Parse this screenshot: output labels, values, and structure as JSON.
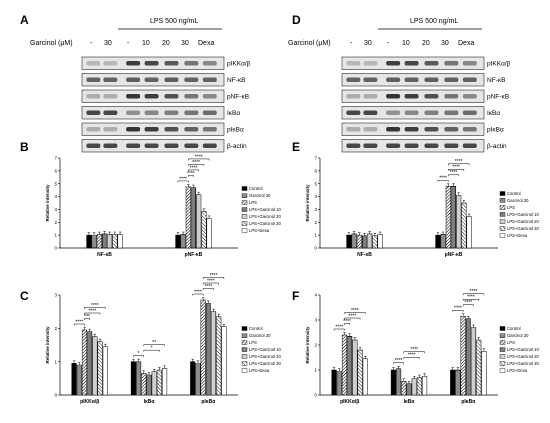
{
  "panels": {
    "A": "A",
    "B": "B",
    "C": "C",
    "D": "D",
    "E": "E",
    "F": "F"
  },
  "blot_header": {
    "lps": "LPS 500 ng/mL",
    "garcinol_label": "Garcinol (μM)",
    "lanes": [
      "-",
      "30",
      "-",
      "10",
      "20",
      "30",
      "Dexa"
    ]
  },
  "blot_left_rows": [
    "pIKKα/β",
    "NF-κB",
    "pNF-κB",
    "IκBα",
    "pIκBα",
    "β-actin"
  ],
  "blot_right_rows": [
    "pIKKα/β",
    "NF-κB",
    "pNF-κB",
    "IκBα",
    "pIκBα",
    "β-actin"
  ],
  "legend": [
    "Control",
    "Garcinol 30",
    "LPS",
    "LPS+Garcinol 10",
    "LPS+Garcinol 20",
    "LPS+Garcinol 30",
    "LPS+Dexa"
  ],
  "colors": {
    "ink": "#000000",
    "band": "#2a2a2a",
    "blot_bg": "#e6e6e6"
  },
  "chart_data": [
    {
      "panel": "B",
      "type": "bar",
      "ylabel": "Relative intensity",
      "ylim": [
        0,
        7
      ],
      "yticks": [
        "0",
        "1",
        "2",
        "3",
        "4",
        "5",
        "6",
        "7"
      ],
      "categories": [
        "NF-κB",
        "pNF-κB"
      ],
      "series": [
        {
          "name": "Control",
          "values": [
            1.0,
            1.0
          ]
        },
        {
          "name": "Garcinol 30",
          "values": [
            1.0,
            1.05
          ]
        },
        {
          "name": "LPS",
          "values": [
            1.05,
            4.75
          ]
        },
        {
          "name": "LPS+Garcinol 10",
          "values": [
            1.1,
            4.7
          ]
        },
        {
          "name": "LPS+Garcinol 20",
          "values": [
            1.05,
            4.15
          ]
        },
        {
          "name": "LPS+Garcinol 30",
          "values": [
            1.05,
            2.85
          ]
        },
        {
          "name": "LPS+Dexa",
          "values": [
            1.05,
            2.3
          ]
        }
      ],
      "brackets": [
        {
          "cat": 1,
          "a": 0,
          "b": 2,
          "level": 0,
          "label": "****"
        },
        {
          "cat": 1,
          "a": 2,
          "b": 3,
          "level": 1,
          "label": "****"
        },
        {
          "cat": 1,
          "a": 2,
          "b": 4,
          "level": 2,
          "label": "****"
        },
        {
          "cat": 1,
          "a": 2,
          "b": 5,
          "level": 3,
          "label": "****"
        },
        {
          "cat": 1,
          "a": 2,
          "b": 6,
          "level": 4,
          "label": "****"
        }
      ]
    },
    {
      "panel": "C",
      "type": "bar",
      "ylabel": "Relative intensity",
      "ylim": [
        0,
        3
      ],
      "yticks": [
        "0",
        "1",
        "2",
        "3"
      ],
      "categories": [
        "pIKKα/β",
        "IκBα",
        "pIκBα"
      ],
      "series": [
        {
          "name": "Control",
          "values": [
            0.95,
            1.0,
            1.0
          ]
        },
        {
          "name": "Garcinol 30",
          "values": [
            0.9,
            1.0,
            0.95
          ]
        },
        {
          "name": "LPS",
          "values": [
            1.95,
            0.65,
            2.85
          ]
        },
        {
          "name": "LPS+Garcinol 10",
          "values": [
            1.9,
            0.6,
            2.75
          ]
        },
        {
          "name": "LPS+Garcinol 20",
          "values": [
            1.75,
            0.7,
            2.5
          ]
        },
        {
          "name": "LPS+Garcinol 30",
          "values": [
            1.6,
            0.75,
            2.35
          ]
        },
        {
          "name": "LPS+Dexa",
          "values": [
            1.45,
            0.8,
            2.05
          ]
        }
      ],
      "brackets": [
        {
          "cat": 0,
          "a": 0,
          "b": 2,
          "level": 0,
          "label": "****"
        },
        {
          "cat": 0,
          "a": 2,
          "b": 3,
          "level": 1,
          "label": "***"
        },
        {
          "cat": 0,
          "a": 2,
          "b": 5,
          "level": 2,
          "label": "****"
        },
        {
          "cat": 0,
          "a": 2,
          "b": 6,
          "level": 3,
          "label": "****"
        },
        {
          "cat": 1,
          "a": 0,
          "b": 2,
          "level": 0,
          "label": "*"
        },
        {
          "cat": 1,
          "a": 2,
          "b": 5,
          "level": 1,
          "label": "*"
        },
        {
          "cat": 1,
          "a": 2,
          "b": 6,
          "level": 2,
          "label": "**"
        },
        {
          "cat": 2,
          "a": 0,
          "b": 2,
          "level": 0,
          "label": "****"
        },
        {
          "cat": 2,
          "a": 2,
          "b": 4,
          "level": 1,
          "label": "****"
        },
        {
          "cat": 2,
          "a": 2,
          "b": 5,
          "level": 2,
          "label": "****"
        },
        {
          "cat": 2,
          "a": 2,
          "b": 6,
          "level": 3,
          "label": "****"
        }
      ]
    },
    {
      "panel": "E",
      "type": "bar",
      "ylabel": "Relative intensity",
      "ylim": [
        0,
        7
      ],
      "yticks": [
        "0",
        "1",
        "2",
        "3",
        "4",
        "5",
        "6",
        "7"
      ],
      "categories": [
        "NF-κB",
        "pNF-κB"
      ],
      "series": [
        {
          "name": "Control",
          "values": [
            1.0,
            1.0
          ]
        },
        {
          "name": "Garcinol 30",
          "values": [
            1.1,
            1.05
          ]
        },
        {
          "name": "LPS",
          "values": [
            1.0,
            4.8
          ]
        },
        {
          "name": "LPS+Garcinol 10",
          "values": [
            0.95,
            4.8
          ]
        },
        {
          "name": "LPS+Garcinol 20",
          "values": [
            1.1,
            4.1
          ]
        },
        {
          "name": "LPS+Garcinol 30",
          "values": [
            0.95,
            3.5
          ]
        },
        {
          "name": "LPS+Dexa",
          "values": [
            1.05,
            2.45
          ]
        }
      ],
      "brackets": [
        {
          "cat": 1,
          "a": 0,
          "b": 2,
          "level": 0,
          "label": "****"
        },
        {
          "cat": 1,
          "a": 2,
          "b": 4,
          "level": 1,
          "label": "****"
        },
        {
          "cat": 1,
          "a": 2,
          "b": 5,
          "level": 2,
          "label": "****"
        },
        {
          "cat": 1,
          "a": 2,
          "b": 6,
          "level": 3,
          "label": "****"
        }
      ]
    },
    {
      "panel": "F",
      "type": "bar",
      "ylabel": "Relative intensity",
      "ylim": [
        0,
        4
      ],
      "yticks": [
        "0",
        "1",
        "2",
        "3",
        "4"
      ],
      "categories": [
        "pIKKα/β",
        "IκBα",
        "pIκBα"
      ],
      "series": [
        {
          "name": "Control",
          "values": [
            1.0,
            1.0,
            1.0
          ]
        },
        {
          "name": "Garcinol 30",
          "values": [
            0.95,
            1.05,
            1.0
          ]
        },
        {
          "name": "LPS",
          "values": [
            2.4,
            0.55,
            3.15
          ]
        },
        {
          "name": "LPS+Garcinol 10",
          "values": [
            2.35,
            0.45,
            3.05
          ]
        },
        {
          "name": "LPS+Garcinol 20",
          "values": [
            2.2,
            0.65,
            2.7
          ]
        },
        {
          "name": "LPS+Garcinol 30",
          "values": [
            1.8,
            0.7,
            2.2
          ]
        },
        {
          "name": "LPS+Dexa",
          "values": [
            1.45,
            0.75,
            1.75
          ]
        }
      ],
      "brackets": [
        {
          "cat": 0,
          "a": 0,
          "b": 2,
          "level": 0,
          "label": "****"
        },
        {
          "cat": 0,
          "a": 2,
          "b": 3,
          "level": 1,
          "label": "****"
        },
        {
          "cat": 0,
          "a": 2,
          "b": 5,
          "level": 2,
          "label": "****"
        },
        {
          "cat": 0,
          "a": 2,
          "b": 6,
          "level": 3,
          "label": "****"
        },
        {
          "cat": 1,
          "a": 0,
          "b": 2,
          "level": 0,
          "label": "****"
        },
        {
          "cat": 1,
          "a": 2,
          "b": 5,
          "level": 1,
          "label": "****"
        },
        {
          "cat": 1,
          "a": 2,
          "b": 6,
          "level": 2,
          "label": "****"
        },
        {
          "cat": 2,
          "a": 0,
          "b": 2,
          "level": 0,
          "label": "****"
        },
        {
          "cat": 2,
          "a": 2,
          "b": 4,
          "level": 1,
          "label": "****"
        },
        {
          "cat": 2,
          "a": 2,
          "b": 5,
          "level": 2,
          "label": "****"
        },
        {
          "cat": 2,
          "a": 2,
          "b": 6,
          "level": 3,
          "label": "****"
        }
      ]
    }
  ]
}
